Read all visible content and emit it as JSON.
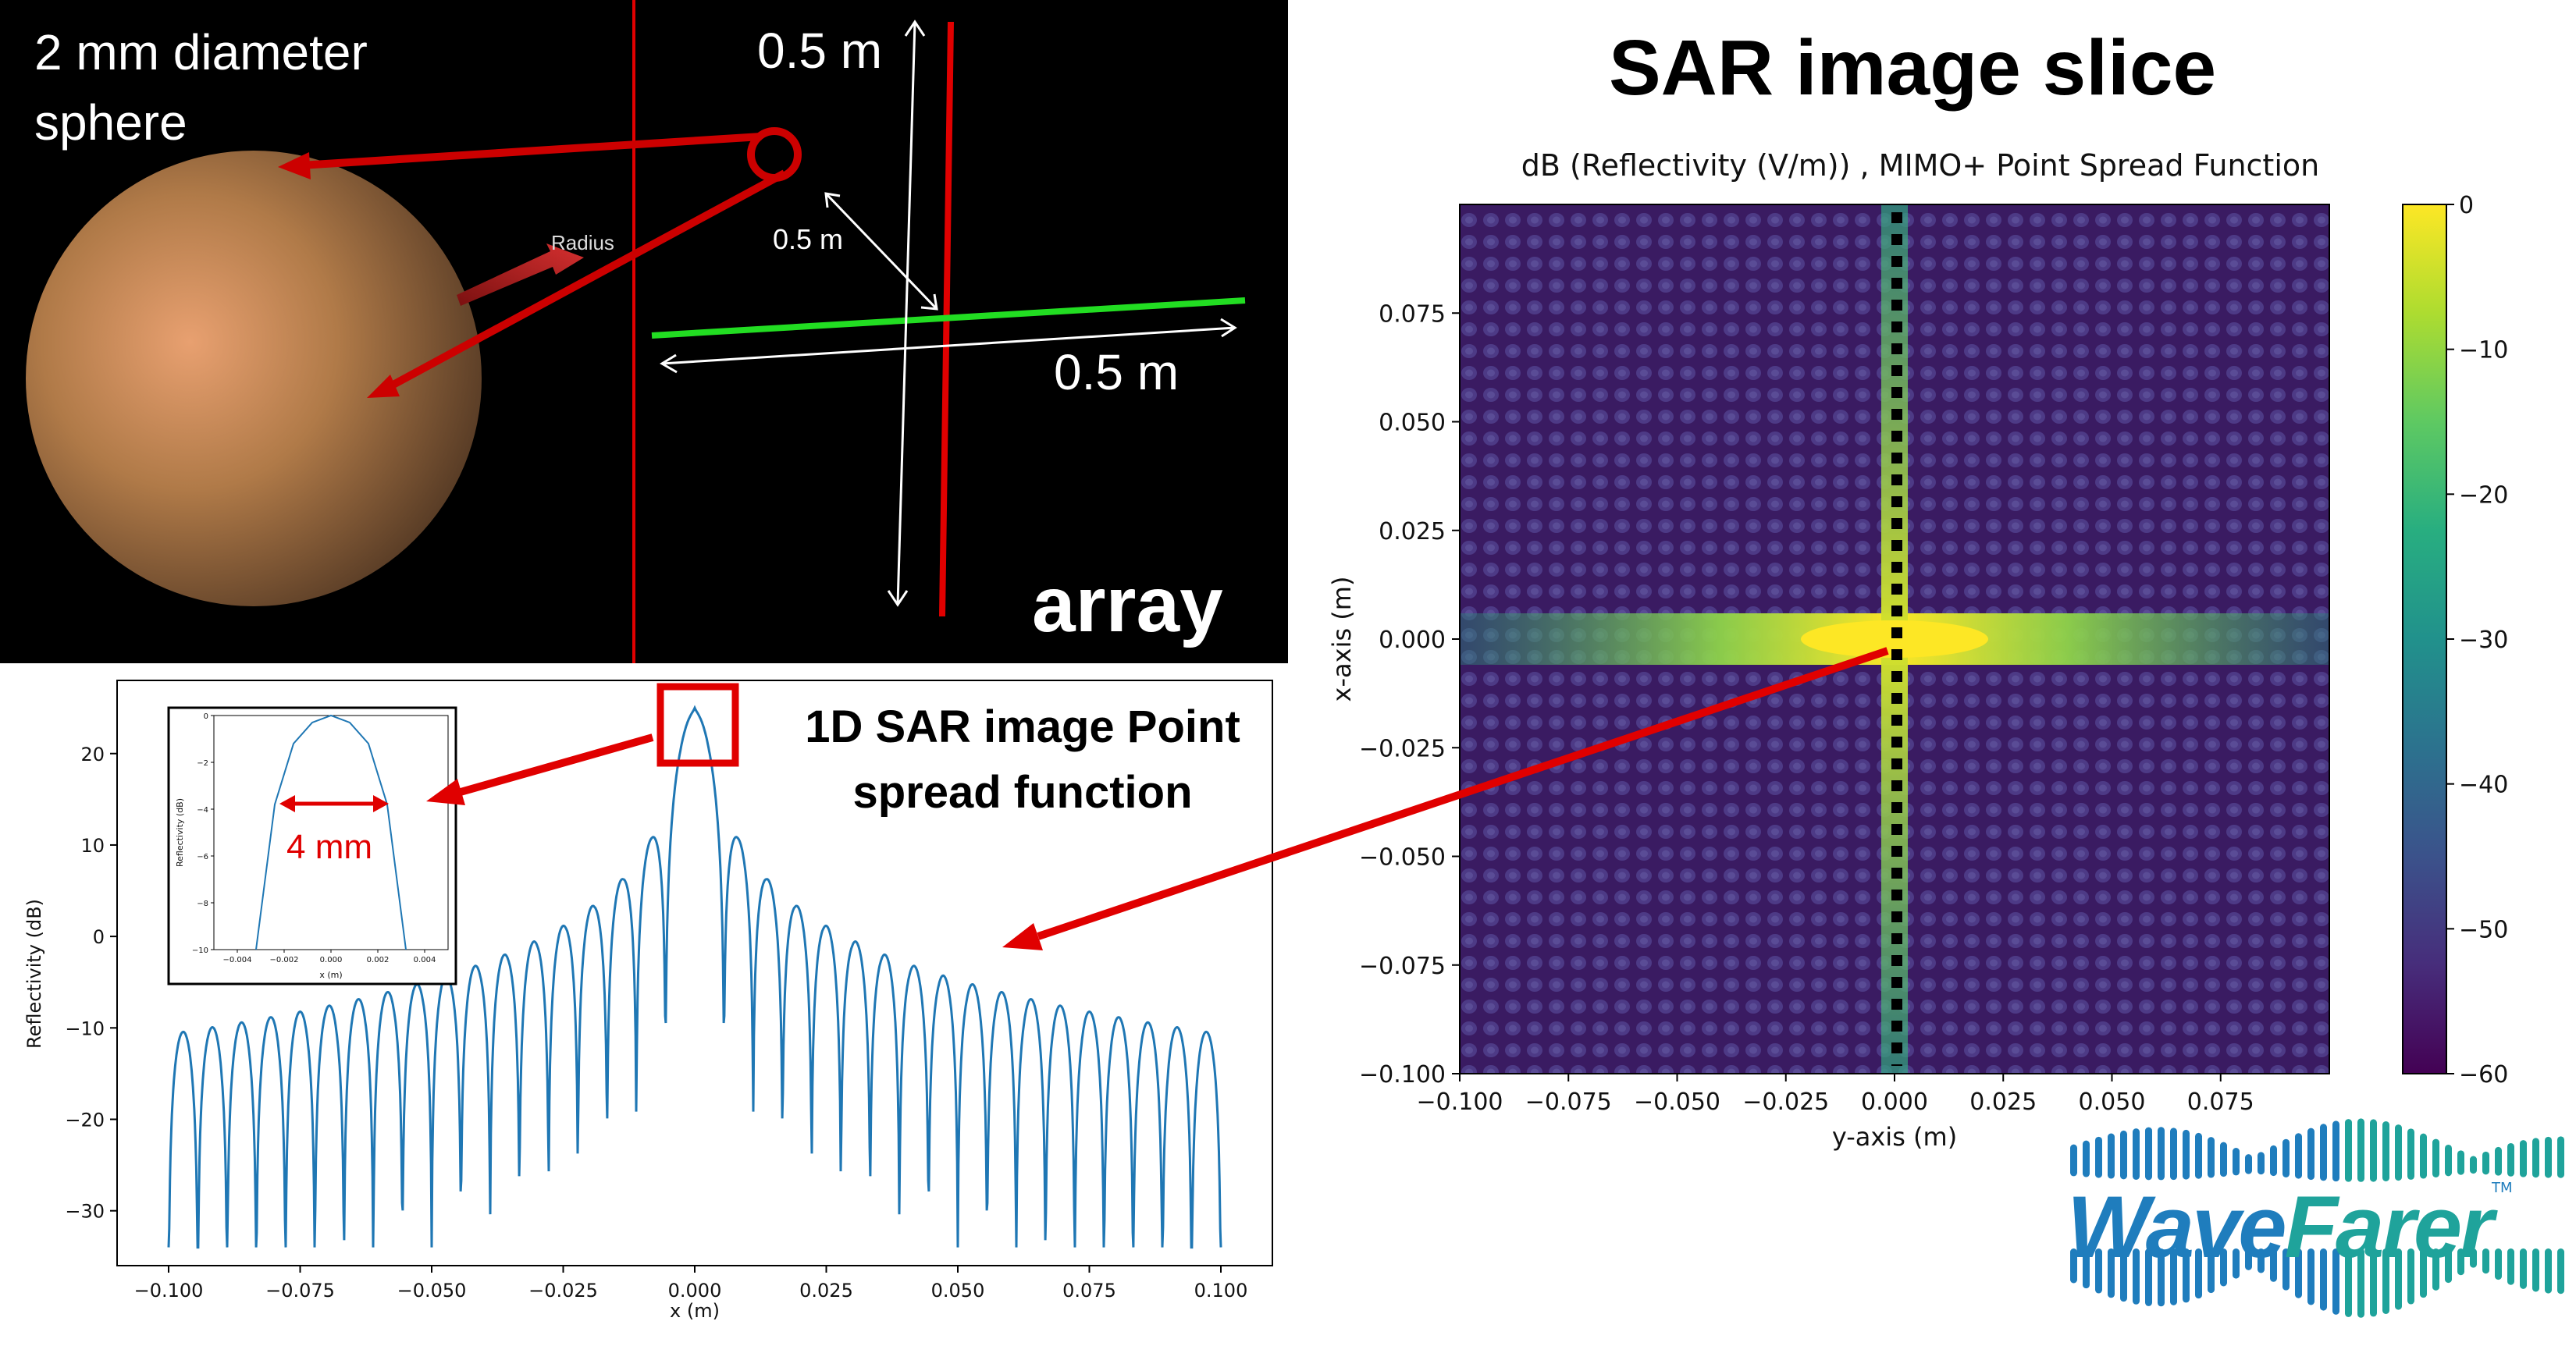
{
  "scene": {
    "sphere_caption_line1": "2 mm diameter",
    "sphere_caption_line2": "sphere",
    "radius_label": "Radius",
    "array_height_label": "0.5 m",
    "array_diag_label": "0.5 m",
    "array_width_label": "0.5 m",
    "array_label": "array",
    "colors": {
      "sphere": "#b07a48",
      "array_vertical": "#e00000",
      "array_horizontal": "#22dd22",
      "callout": "#cc0000",
      "dimension_arrows": "#ffffff"
    }
  },
  "slice_title": "SAR image slice",
  "psf_title_line1": "1D SAR image Point",
  "psf_title_line2": "spread function",
  "callout_label": "4 mm",
  "logo": {
    "part1": "Wave",
    "part2": "Farer",
    "tm": "TM",
    "colors": {
      "wave": "#1f7dbd",
      "farer": "#1fa39b"
    }
  },
  "chart_data": [
    {
      "id": "heatmap",
      "type": "heatmap",
      "title": "dB (Reflectivity (V/m)) , MIMO+ Point Spread Function",
      "xlabel": "y-axis (m)",
      "ylabel": "x-axis (m)",
      "xlim": [
        -0.1,
        0.1
      ],
      "ylim": [
        -0.1,
        0.1
      ],
      "xticks": [
        "−0.100",
        "−0.075",
        "−0.050",
        "−0.025",
        "0.000",
        "0.025",
        "0.050",
        "0.075"
      ],
      "yticks": [
        "0.075",
        "0.050",
        "0.025",
        "0.000",
        "−0.025",
        "−0.050",
        "−0.075",
        "−0.100"
      ],
      "colorbar": {
        "min": -60,
        "max": 0,
        "ticks": [
          "0",
          "−10",
          "−20",
          "−30",
          "−40",
          "−50",
          "−60"
        ],
        "colormap": "viridis"
      },
      "grid": false
    },
    {
      "id": "psf",
      "type": "line",
      "xlabel": "x (m)",
      "ylabel": "Reflectivity (dB)",
      "xlim": [
        -0.1,
        0.1
      ],
      "ylim": [
        -36,
        28
      ],
      "xticks": [
        "−0.100",
        "−0.075",
        "−0.050",
        "−0.025",
        "0.000",
        "0.025",
        "0.050",
        "0.075",
        "0.100"
      ],
      "yticks": [
        "20",
        "10",
        "0",
        "−10",
        "−20",
        "−30"
      ],
      "peak": 25,
      "series_color": "#1f77b4",
      "grid": false
    },
    {
      "id": "psf-inset",
      "type": "line",
      "xlabel": "x (m)",
      "ylabel": "Reflectivity (dB)",
      "xlim": [
        -0.005,
        0.005
      ],
      "ylim": [
        -10,
        0
      ],
      "x": [
        -0.0032,
        -0.0024,
        -0.0016,
        -0.0008,
        0.0,
        0.0008,
        0.0016,
        0.0024,
        0.0032
      ],
      "y": [
        -10,
        -3.8,
        -1.2,
        -0.3,
        0,
        -0.3,
        -1.2,
        -3.8,
        -10
      ],
      "xticks": [
        "−0.004",
        "−0.002",
        "0.000",
        "0.002",
        "0.004"
      ],
      "yticks": [
        "0",
        "−2",
        "−4",
        "−6",
        "−8",
        "−10"
      ],
      "series_color": "#1f77b4"
    }
  ]
}
